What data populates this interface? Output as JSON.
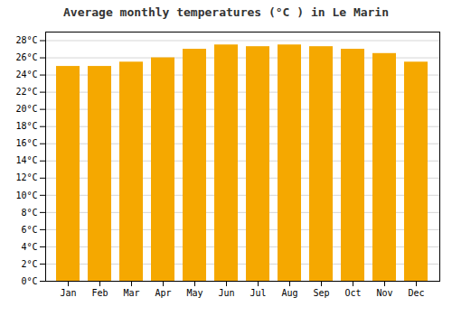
{
  "chart_data": {
    "type": "bar",
    "title": "Average monthly temperatures (°C ) in Le Marin",
    "categories": [
      "Jan",
      "Feb",
      "Mar",
      "Apr",
      "May",
      "Jun",
      "Jul",
      "Aug",
      "Sep",
      "Oct",
      "Nov",
      "Dec"
    ],
    "values": [
      25.0,
      25.0,
      25.5,
      26.0,
      27.0,
      27.5,
      27.3,
      27.5,
      27.3,
      27.0,
      26.5,
      25.5
    ],
    "color": "#F5A800",
    "ylim": [
      0,
      29
    ],
    "yticks": [
      {
        "value": 0,
        "label": "0°C"
      },
      {
        "value": 2,
        "label": "2°C"
      },
      {
        "value": 4,
        "label": "4°C"
      },
      {
        "value": 6,
        "label": "6°C"
      },
      {
        "value": 8,
        "label": "8°C"
      },
      {
        "value": 10,
        "label": "10°C"
      },
      {
        "value": 12,
        "label": "12°C"
      },
      {
        "value": 14,
        "label": "14°C"
      },
      {
        "value": 16,
        "label": "16°C"
      },
      {
        "value": 18,
        "label": "18°C"
      },
      {
        "value": 20,
        "label": "20°C"
      },
      {
        "value": 22,
        "label": "22°C"
      },
      {
        "value": 24,
        "label": "24°C"
      },
      {
        "value": 26,
        "label": "26°C"
      },
      {
        "value": 28,
        "label": "28°C"
      }
    ],
    "grid": true
  }
}
